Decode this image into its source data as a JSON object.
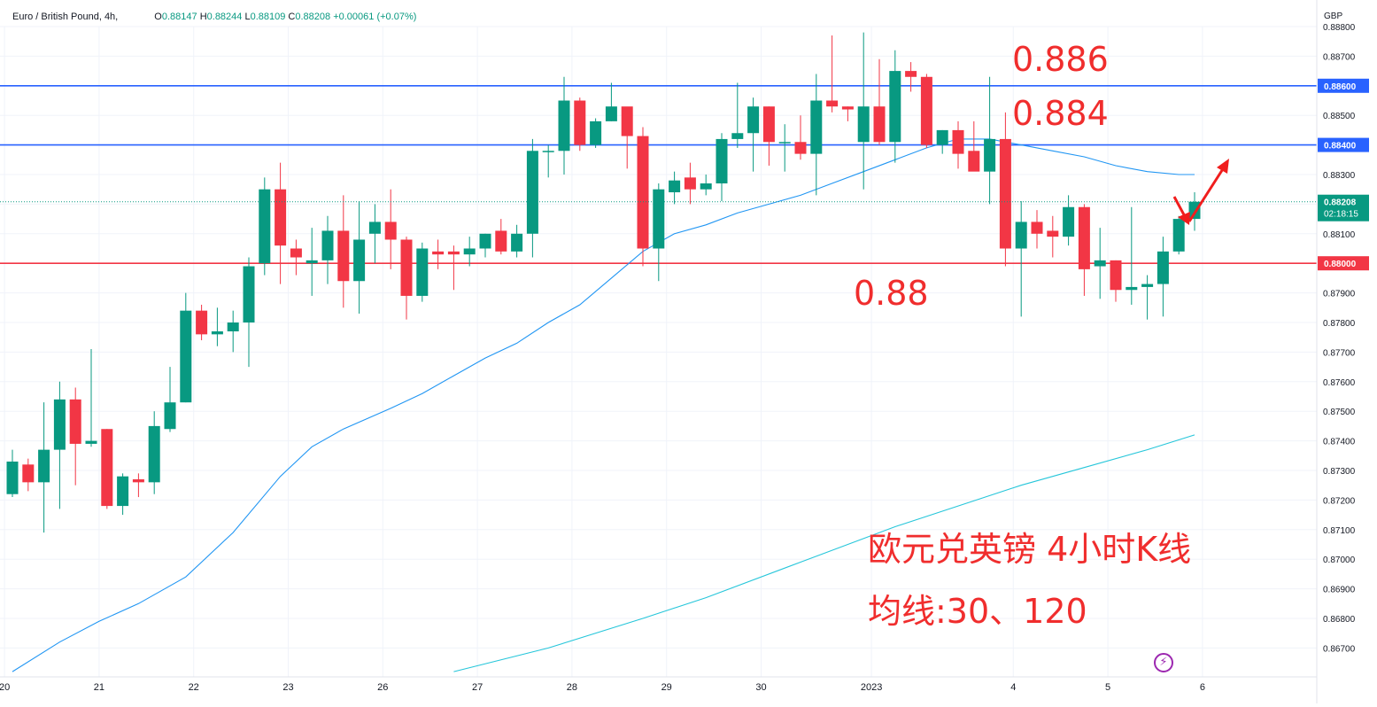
{
  "header": {
    "symbol": "Euro / British Pound, 4h,",
    "open": "0.88147",
    "high": "0.88244",
    "low": "0.88109",
    "close": "0.88208",
    "change": "+0.00061 (+0.07%)"
  },
  "currency_label": "GBP",
  "price_badge": {
    "price": "0.88208",
    "countdown": "02:18:15"
  },
  "colors": {
    "up": "#089981",
    "down": "#f23645",
    "ma30": "#2196f3",
    "ma120": "#26c6da",
    "resistance": "#2962ff",
    "support": "#f23645",
    "annotation": "#f02d2d"
  },
  "chart_data": {
    "type": "candlestick",
    "symbol": "Euro / British Pound",
    "interval": "4h",
    "yrange": [
      0.866,
      0.888
    ],
    "y_ticks": [
      "0.88800",
      "0.88700",
      "0.88600",
      "0.88500",
      "0.88400",
      "0.88300",
      "0.88200",
      "0.88100",
      "0.88000",
      "0.87900",
      "0.87800",
      "0.87700",
      "0.87600",
      "0.87500",
      "0.87400",
      "0.87300",
      "0.87200",
      "0.87100",
      "0.87000",
      "0.86900",
      "0.86800",
      "0.86700"
    ],
    "x_labels": [
      {
        "label": "20",
        "i": -0.5
      },
      {
        "label": "21",
        "i": 5.5
      },
      {
        "label": "22",
        "i": 11.5
      },
      {
        "label": "23",
        "i": 17.5
      },
      {
        "label": "26",
        "i": 23.5
      },
      {
        "label": "27",
        "i": 29.5
      },
      {
        "label": "28",
        "i": 35.5
      },
      {
        "label": "29",
        "i": 41.5
      },
      {
        "label": "30",
        "i": 47.5
      },
      {
        "label": "2023",
        "i": 54.5
      },
      {
        "label": "4",
        "i": 63.5
      },
      {
        "label": "5",
        "i": 69.5
      },
      {
        "label": "6",
        "i": 75.5
      }
    ],
    "candles": [
      [
        0.8722,
        0.8737,
        0.8721,
        0.8733
      ],
      [
        0.8732,
        0.8734,
        0.8723,
        0.8726
      ],
      [
        0.8726,
        0.8753,
        0.8709,
        0.8737
      ],
      [
        0.8737,
        0.876,
        0.8717,
        0.8754
      ],
      [
        0.8754,
        0.8758,
        0.8725,
        0.8739
      ],
      [
        0.8739,
        0.8771,
        0.8738,
        0.874
      ],
      [
        0.8744,
        0.8744,
        0.8717,
        0.8718
      ],
      [
        0.8718,
        0.8729,
        0.8715,
        0.8728
      ],
      [
        0.8727,
        0.8729,
        0.8721,
        0.8726
      ],
      [
        0.8726,
        0.875,
        0.8722,
        0.8745
      ],
      [
        0.8744,
        0.8765,
        0.8743,
        0.8753
      ],
      [
        0.8753,
        0.879,
        0.8753,
        0.8784
      ],
      [
        0.8784,
        0.8786,
        0.8774,
        0.8776
      ],
      [
        0.8776,
        0.8785,
        0.8772,
        0.8777
      ],
      [
        0.8777,
        0.8784,
        0.877,
        0.878
      ],
      [
        0.878,
        0.8802,
        0.8765,
        0.8799
      ],
      [
        0.88,
        0.8829,
        0.8796,
        0.8825
      ],
      [
        0.8825,
        0.8834,
        0.8793,
        0.8806
      ],
      [
        0.8805,
        0.8808,
        0.8796,
        0.8802
      ],
      [
        0.88,
        0.8812,
        0.8789,
        0.8801
      ],
      [
        0.8801,
        0.8816,
        0.8793,
        0.8811
      ],
      [
        0.8811,
        0.8823,
        0.8785,
        0.8794
      ],
      [
        0.8794,
        0.8821,
        0.8783,
        0.8808
      ],
      [
        0.881,
        0.882,
        0.88,
        0.8814
      ],
      [
        0.8814,
        0.8825,
        0.8798,
        0.8808
      ],
      [
        0.8808,
        0.8809,
        0.8781,
        0.8789
      ],
      [
        0.8789,
        0.8807,
        0.8787,
        0.8805
      ],
      [
        0.8804,
        0.8808,
        0.8798,
        0.8803
      ],
      [
        0.8804,
        0.8806,
        0.8791,
        0.8803
      ],
      [
        0.8803,
        0.8809,
        0.8799,
        0.8805
      ],
      [
        0.8805,
        0.881,
        0.8802,
        0.881
      ],
      [
        0.8811,
        0.8815,
        0.8803,
        0.8804
      ],
      [
        0.8804,
        0.8813,
        0.8802,
        0.881
      ],
      [
        0.881,
        0.8842,
        0.8802,
        0.8838
      ],
      [
        0.8838,
        0.884,
        0.8829,
        0.8838
      ],
      [
        0.8838,
        0.8863,
        0.883,
        0.8855
      ],
      [
        0.8855,
        0.8856,
        0.8838,
        0.884
      ],
      [
        0.884,
        0.8849,
        0.8839,
        0.8848
      ],
      [
        0.8848,
        0.8861,
        0.8848,
        0.8853
      ],
      [
        0.8853,
        0.8852,
        0.8832,
        0.8843
      ],
      [
        0.8843,
        0.8846,
        0.8799,
        0.8805
      ],
      [
        0.8805,
        0.8827,
        0.8794,
        0.8825
      ],
      [
        0.8824,
        0.8831,
        0.882,
        0.8828
      ],
      [
        0.8829,
        0.8834,
        0.882,
        0.8825
      ],
      [
        0.8825,
        0.883,
        0.8823,
        0.8827
      ],
      [
        0.8827,
        0.8844,
        0.8821,
        0.8842
      ],
      [
        0.8842,
        0.8861,
        0.8839,
        0.8844
      ],
      [
        0.8844,
        0.8856,
        0.8831,
        0.8853
      ],
      [
        0.8853,
        0.8853,
        0.8833,
        0.8841
      ],
      [
        0.8841,
        0.8847,
        0.8831,
        0.8841
      ],
      [
        0.8841,
        0.885,
        0.8835,
        0.8837
      ],
      [
        0.8837,
        0.8864,
        0.8823,
        0.8855
      ],
      [
        0.8855,
        0.8877,
        0.8851,
        0.8853
      ],
      [
        0.8853,
        0.8853,
        0.8848,
        0.8852
      ],
      [
        0.8841,
        0.8878,
        0.8825,
        0.8853
      ],
      [
        0.8853,
        0.8869,
        0.884,
        0.8841
      ],
      [
        0.8841,
        0.8872,
        0.8834,
        0.8865
      ],
      [
        0.8865,
        0.8868,
        0.8858,
        0.8863
      ],
      [
        0.8863,
        0.8864,
        0.8839,
        0.884
      ],
      [
        0.884,
        0.8845,
        0.8837,
        0.8845
      ],
      [
        0.8845,
        0.8848,
        0.8832,
        0.8837
      ],
      [
        0.8838,
        0.8848,
        0.8833,
        0.8831
      ],
      [
        0.8831,
        0.8863,
        0.882,
        0.8842
      ],
      [
        0.8842,
        0.8851,
        0.8799,
        0.8805
      ],
      [
        0.8805,
        0.8821,
        0.8782,
        0.8814
      ],
      [
        0.8814,
        0.8818,
        0.8805,
        0.881
      ],
      [
        0.8811,
        0.8816,
        0.8802,
        0.8809
      ],
      [
        0.8809,
        0.8823,
        0.8806,
        0.8819
      ],
      [
        0.8819,
        0.882,
        0.8789,
        0.8798
      ],
      [
        0.8799,
        0.8812,
        0.8788,
        0.8801
      ],
      [
        0.8801,
        0.8801,
        0.8787,
        0.8791
      ],
      [
        0.8791,
        0.8819,
        0.8786,
        0.8792
      ],
      [
        0.8792,
        0.8796,
        0.8781,
        0.8793
      ],
      [
        0.8793,
        0.8809,
        0.8782,
        0.8804
      ],
      [
        0.8804,
        0.8816,
        0.8803,
        0.8815
      ],
      [
        0.8815,
        0.8824,
        0.8811,
        0.88208
      ]
    ],
    "ma30": [
      [
        0,
        0.8662
      ],
      [
        3,
        0.8672
      ],
      [
        5.5,
        0.8679
      ],
      [
        8,
        0.8685
      ],
      [
        11,
        0.8694
      ],
      [
        14,
        0.8709
      ],
      [
        17,
        0.8728
      ],
      [
        19,
        0.8738
      ],
      [
        21,
        0.8744
      ],
      [
        24,
        0.8751
      ],
      [
        26,
        0.8756
      ],
      [
        28,
        0.8762
      ],
      [
        30,
        0.8768
      ],
      [
        32,
        0.8773
      ],
      [
        34,
        0.878
      ],
      [
        36,
        0.8786
      ],
      [
        38,
        0.8795
      ],
      [
        40,
        0.8804
      ],
      [
        42,
        0.881
      ],
      [
        44,
        0.8813
      ],
      [
        46,
        0.8817
      ],
      [
        48,
        0.882
      ],
      [
        50,
        0.8823
      ],
      [
        52,
        0.8827
      ],
      [
        54,
        0.8831
      ],
      [
        56,
        0.8835
      ],
      [
        58,
        0.8839
      ],
      [
        60,
        0.8842
      ],
      [
        62,
        0.8842
      ],
      [
        64,
        0.884
      ],
      [
        66,
        0.8838
      ],
      [
        68,
        0.8836
      ],
      [
        70,
        0.8833
      ],
      [
        72,
        0.8831
      ],
      [
        74,
        0.883
      ],
      [
        75,
        0.883
      ]
    ],
    "ma120": [
      [
        28,
        0.8662
      ],
      [
        34,
        0.867
      ],
      [
        40,
        0.868
      ],
      [
        44,
        0.8687
      ],
      [
        50,
        0.8699
      ],
      [
        56,
        0.8711
      ],
      [
        60,
        0.8718
      ],
      [
        64,
        0.8725
      ],
      [
        68,
        0.8731
      ],
      [
        72,
        0.8737
      ],
      [
        75,
        0.8742
      ]
    ],
    "hlines": [
      {
        "price": 0.886,
        "label": "0.88600",
        "color": "#2962ff"
      },
      {
        "price": 0.884,
        "label": "0.88400",
        "color": "#2962ff"
      },
      {
        "price": 0.88,
        "label": "0.88000",
        "color": "#f23645"
      }
    ],
    "annotations": [
      "0.886",
      "0.884",
      "0.88"
    ],
    "title": "欧元兑英镑 4小时K线",
    "subtitle": "均线:30、120"
  }
}
